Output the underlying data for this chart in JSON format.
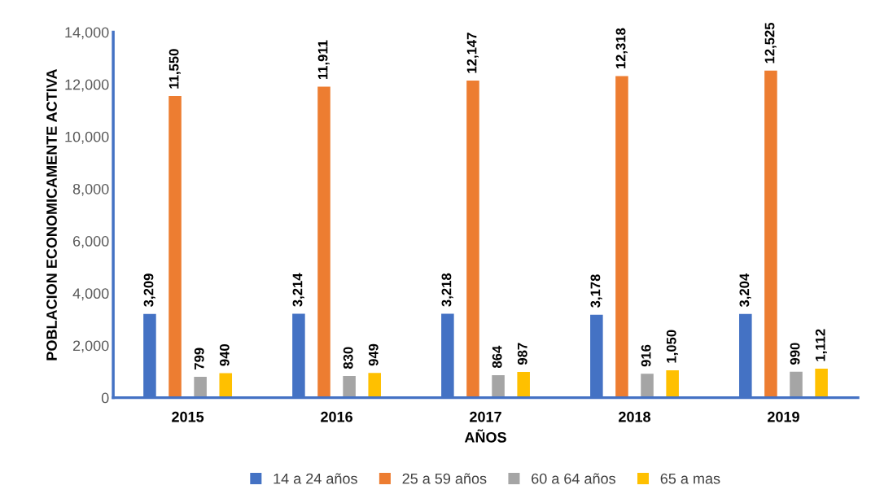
{
  "chart_data": {
    "type": "bar",
    "xlabel": "AÑOS",
    "ylabel": "POBLACION ECONOMICAMENTE ACTIVA",
    "categories": [
      "2015",
      "2016",
      "2017",
      "2018",
      "2019"
    ],
    "series": [
      {
        "name": "14 a 24 años",
        "color": "#4472c4",
        "values": [
          3209,
          3214,
          3218,
          3178,
          3204
        ],
        "value_labels": [
          "3,209",
          "3,214",
          "3,218",
          "3,178",
          "3,204"
        ]
      },
      {
        "name": "25 a 59 años",
        "color": "#ed7d31",
        "values": [
          11550,
          11911,
          12147,
          12318,
          12525
        ],
        "value_labels": [
          "11,550",
          "11,911",
          "12,147",
          "12,318",
          "12,525"
        ]
      },
      {
        "name": "60 a 64 años",
        "color": "#a5a5a5",
        "values": [
          799,
          830,
          864,
          916,
          990
        ],
        "value_labels": [
          "799",
          "830",
          "864",
          "916",
          "990"
        ]
      },
      {
        "name": "65 a mas",
        "color": "#ffc000",
        "values": [
          940,
          949,
          987,
          1050,
          1112
        ],
        "value_labels": [
          "940",
          "949",
          "987",
          "1,050",
          "1,112"
        ]
      }
    ],
    "ylim": [
      0,
      14000
    ],
    "yticks": [
      {
        "value": 0,
        "label": "0"
      },
      {
        "value": 2000,
        "label": "2,000"
      },
      {
        "value": 4000,
        "label": "4,000"
      },
      {
        "value": 6000,
        "label": "6,000"
      },
      {
        "value": 8000,
        "label": "8,000"
      },
      {
        "value": 10000,
        "label": "10,000"
      },
      {
        "value": 12000,
        "label": "12,000"
      },
      {
        "value": 14000,
        "label": "14,000"
      }
    ],
    "grid": false,
    "legend": "bottom"
  }
}
